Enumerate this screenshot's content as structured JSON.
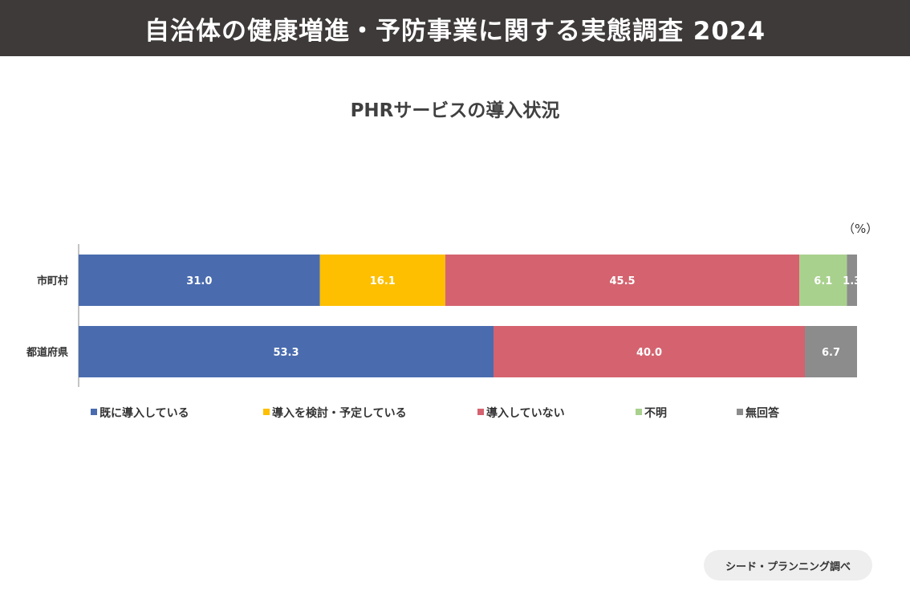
{
  "header": {
    "title": "自治体の健康増進・予防事業に関する実態調査 2024"
  },
  "source": "シード・プランニング調べ",
  "chart_data": {
    "type": "bar",
    "orientation": "horizontal",
    "stacked": true,
    "title": "PHRサービスの導入状況",
    "unit": "（%）",
    "categories": [
      "市町村",
      "都道府県"
    ],
    "xlim": [
      0,
      100
    ],
    "legend_position": "bottom",
    "series": [
      {
        "name": "既に導入している",
        "color": "#4a6cae",
        "values": [
          31.0,
          53.3
        ]
      },
      {
        "name": "導入を検討・予定している",
        "color": "#fdbf00",
        "values": [
          16.1,
          null
        ]
      },
      {
        "name": "導入していない",
        "color": "#d4636f",
        "values": [
          45.5,
          40.0
        ]
      },
      {
        "name": "不明",
        "color": "#a9d18e",
        "values": [
          6.1,
          null
        ]
      },
      {
        "name": "無回答",
        "color": "#8c8c8c",
        "values": [
          1.3,
          6.7
        ]
      }
    ]
  }
}
